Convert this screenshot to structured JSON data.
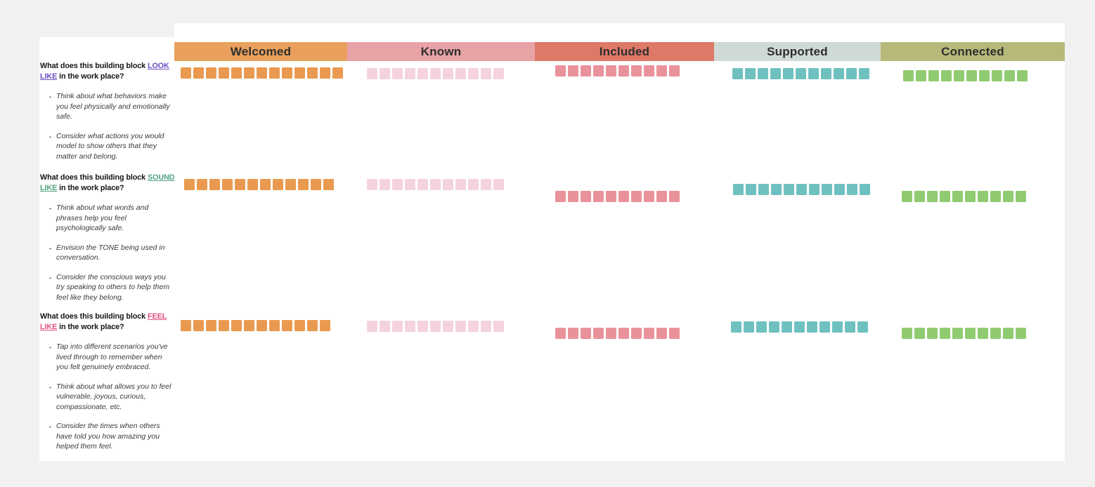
{
  "page": {
    "background_color": "#F1F1F1",
    "board_color": "#FFFFFF"
  },
  "columns": [
    {
      "id": "welcomed",
      "label": "Welcomed",
      "header_bg": "#E8A05C",
      "note_color": "#EA9A50"
    },
    {
      "id": "known",
      "label": "Known",
      "header_bg": "#E8A3A6",
      "note_color": "#F5D3DE"
    },
    {
      "id": "included",
      "label": "Included",
      "header_bg": "#DE7968",
      "note_color": "#EA929B"
    },
    {
      "id": "supported",
      "label": "Supported",
      "header_bg": "#CFDAD4",
      "note_color": "#6FC1C0"
    },
    {
      "id": "connected",
      "label": "Connected",
      "header_bg": "#B6B979",
      "note_color": "#90CB71"
    }
  ],
  "rows": [
    {
      "question": {
        "prefix": "What does this building block ",
        "highlight": "LOOK LIKE",
        "suffix": " in the work place?",
        "highlight_color": "#6B4EC4"
      },
      "bullets": [
        "Think about what behaviors make you feel physically and emotionally safe.",
        "Consider what actions you would model to show others that they matter and belong."
      ],
      "note_counts": [
        13,
        11,
        10,
        11,
        10
      ]
    },
    {
      "question": {
        "prefix": "What does this building block ",
        "highlight": "SOUND LIKE",
        "suffix": " in the work place?",
        "highlight_color": "#52A381"
      },
      "bullets": [
        "Think about what words and phrases help you feel psychologically safe.",
        "Envision the TONE being used in conversation.",
        "Consider the conscious ways you try speaking to others to help them feel like they belong."
      ],
      "note_counts": [
        12,
        11,
        10,
        11,
        10
      ]
    },
    {
      "question": {
        "prefix": "What does this building block ",
        "highlight": "FEEL LIKE",
        "suffix": " in the work place?",
        "highlight_color": "#E2527F"
      },
      "bullets": [
        "Tap into different scenarios you've lived through to remember when you felt genuinely embraced.",
        "Think about what allows you to feel vulnerable, joyous, curious, compassionate, etc.",
        "Consider the times when others have told you how amazing you helped them feel."
      ],
      "note_counts": [
        12,
        11,
        10,
        11,
        10
      ]
    }
  ]
}
